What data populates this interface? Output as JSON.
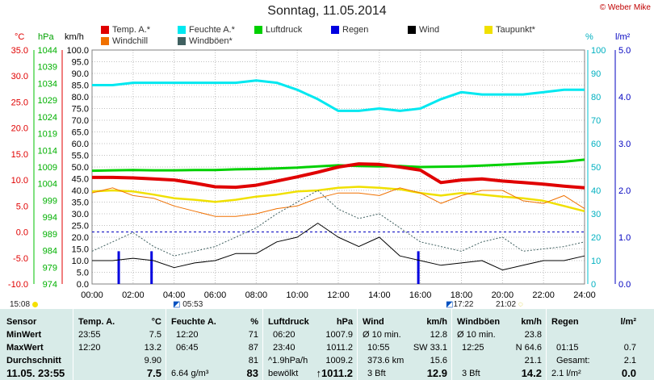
{
  "header": {
    "title": "Sonntag, 11.05.2014",
    "copyright": "© Weber Mike",
    "legend": [
      {
        "label": "Temp. A.*",
        "color": "#e00000"
      },
      {
        "label": "Feuchte A.*",
        "color": "#00e8f0"
      },
      {
        "label": "Luftdruck",
        "color": "#00d000"
      },
      {
        "label": "Regen",
        "color": "#0000e0"
      },
      {
        "label": "Wind",
        "color": "#000000"
      },
      {
        "label": "Taupunkt*",
        "color": "#f0e000"
      },
      {
        "label": "Windchill",
        "color": "#f07000"
      },
      {
        "label": "Windböen*",
        "color": "#406060"
      }
    ],
    "axis_units": {
      "temp": "°C",
      "pressure": "hPa",
      "wind": "km/h",
      "humidity": "%",
      "rain": "l/m²"
    }
  },
  "sun": {
    "sunrise_icon_time": "05:53",
    "sunset_icon_time": "21:02",
    "moon_time": "17:22",
    "left_time": "15:08"
  },
  "chart_data": {
    "type": "line",
    "x_label": "",
    "x_ticks": [
      "00:00",
      "02:00",
      "04:00",
      "06:00",
      "08:00",
      "10:00",
      "12:00",
      "14:00",
      "16:00",
      "18:00",
      "20:00",
      "22:00",
      "24:00"
    ],
    "axes": {
      "temp_c": {
        "ticks": [
          "35.0",
          "30.0",
          "25.0",
          "20.0",
          "15.0",
          "10.0",
          "5.0",
          "0.0",
          "-5.0",
          "-10.0"
        ],
        "range": [
          -10,
          35
        ]
      },
      "pressure_hpa": {
        "ticks": [
          "1044",
          "1039",
          "1034",
          "1029",
          "1024",
          "1019",
          "1014",
          "1009",
          "1004",
          "999",
          "994",
          "989",
          "984",
          "979",
          "974"
        ],
        "range": [
          974,
          1044
        ]
      },
      "wind_kmh": {
        "ticks": [
          "100.0",
          "95.0",
          "90.0",
          "85.0",
          "80.0",
          "75.0",
          "70.0",
          "65.0",
          "60.0",
          "55.0",
          "50.0",
          "45.0",
          "40.0",
          "35.0",
          "30.0",
          "25.0",
          "20.0",
          "15.0",
          "10.0",
          "5.0",
          "0.0"
        ],
        "range": [
          0,
          100
        ]
      },
      "humidity_pct": {
        "ticks": [
          "100",
          "90",
          "80",
          "70",
          "60",
          "50",
          "40",
          "30",
          "20",
          "10",
          "0"
        ],
        "range": [
          0,
          100
        ]
      },
      "rain_lm2": {
        "ticks": [
          "5.0",
          "4.0",
          "3.0",
          "2.0",
          "1.0",
          "0.0"
        ],
        "range": [
          0,
          5
        ]
      }
    },
    "series": [
      {
        "name": "Feuchte A.*",
        "axis": "humidity_pct",
        "color": "#00e8f0",
        "hours": [
          0,
          1,
          2,
          3,
          4,
          5,
          6,
          7,
          8,
          9,
          10,
          11,
          12,
          13,
          14,
          15,
          16,
          17,
          18,
          19,
          20,
          21,
          22,
          23,
          24
        ],
        "values": [
          85,
          85,
          86,
          86,
          86,
          86,
          86,
          86,
          87,
          86,
          83,
          79,
          74,
          74,
          75,
          74,
          75,
          79,
          82,
          81,
          81,
          81,
          82,
          83,
          83
        ]
      },
      {
        "name": "Luftdruck",
        "axis": "pressure_hpa",
        "color": "#00d000",
        "hours": [
          0,
          1,
          2,
          3,
          4,
          5,
          6,
          7,
          8,
          9,
          10,
          11,
          12,
          13,
          14,
          15,
          16,
          17,
          18,
          19,
          20,
          21,
          22,
          23,
          24
        ],
        "values": [
          1007.9,
          1008.0,
          1008.1,
          1008.0,
          1008.0,
          1008.1,
          1008.1,
          1008.3,
          1008.4,
          1008.6,
          1008.8,
          1009.2,
          1009.5,
          1009.3,
          1009.2,
          1009.3,
          1009.0,
          1009.1,
          1009.2,
          1009.4,
          1009.7,
          1010.0,
          1010.3,
          1010.6,
          1011.2
        ]
      },
      {
        "name": "Temp. A.*",
        "axis": "temp_c",
        "color": "#e00000",
        "hours": [
          0,
          1,
          2,
          3,
          4,
          5,
          6,
          7,
          8,
          9,
          10,
          11,
          12,
          13,
          14,
          15,
          16,
          17,
          18,
          19,
          20,
          21,
          22,
          23,
          24
        ],
        "values": [
          10.5,
          10.5,
          10.4,
          10.2,
          10.0,
          9.4,
          8.7,
          8.6,
          9.0,
          9.8,
          10.6,
          11.5,
          12.5,
          13.1,
          13.0,
          12.5,
          11.9,
          9.5,
          10.0,
          10.2,
          9.8,
          9.5,
          9.2,
          8.8,
          8.5
        ]
      },
      {
        "name": "Taupunkt*",
        "axis": "temp_c",
        "color": "#f0e000",
        "hours": [
          0,
          1,
          2,
          3,
          4,
          5,
          6,
          7,
          8,
          9,
          10,
          11,
          12,
          13,
          14,
          15,
          16,
          17,
          18,
          19,
          20,
          21,
          22,
          23,
          24
        ],
        "values": [
          7.8,
          8.0,
          7.8,
          7.2,
          6.5,
          6.2,
          5.8,
          6.2,
          6.8,
          7.2,
          7.8,
          8.0,
          8.5,
          8.7,
          8.5,
          8.2,
          7.5,
          7.0,
          7.5,
          7.2,
          6.8,
          6.5,
          6.0,
          5.0,
          4.0
        ]
      },
      {
        "name": "Windchill",
        "axis": "temp_c",
        "color": "#f07000",
        "hours": [
          0,
          1,
          2,
          3,
          4,
          5,
          6,
          7,
          8,
          9,
          10,
          11,
          12,
          13,
          14,
          15,
          16,
          17,
          18,
          19,
          20,
          21,
          22,
          23,
          24
        ],
        "values": [
          7.5,
          8.5,
          7.0,
          6.5,
          5.0,
          4.0,
          3.0,
          3.0,
          3.5,
          4.5,
          5.0,
          6.5,
          7.5,
          7.5,
          7.0,
          8.5,
          7.5,
          5.5,
          7.0,
          8.0,
          8.0,
          6.0,
          5.5,
          7.0,
          4.5
        ]
      },
      {
        "name": "Windböen*",
        "axis": "wind_kmh",
        "color": "#406060",
        "hours": [
          0,
          1,
          2,
          3,
          4,
          5,
          6,
          7,
          8,
          9,
          10,
          11,
          12,
          13,
          14,
          15,
          16,
          17,
          18,
          19,
          20,
          21,
          22,
          23,
          24
        ],
        "values": [
          14,
          18,
          22,
          16,
          12,
          14,
          16,
          20,
          24,
          30,
          35,
          40,
          32,
          28,
          30,
          24,
          18,
          16,
          14,
          18,
          20,
          14,
          15,
          16,
          18
        ]
      },
      {
        "name": "Wind",
        "axis": "wind_kmh",
        "color": "#000000",
        "hours": [
          0,
          1,
          2,
          3,
          4,
          5,
          6,
          7,
          8,
          9,
          10,
          11,
          12,
          13,
          14,
          15,
          16,
          17,
          18,
          19,
          20,
          21,
          22,
          23,
          24
        ],
        "values": [
          10,
          10,
          11,
          10,
          7,
          9,
          10,
          13,
          13,
          18,
          20,
          26,
          20,
          16,
          20,
          12,
          10,
          8,
          9,
          10,
          6,
          8,
          10,
          10,
          12
        ]
      }
    ],
    "rain_bars": [
      {
        "hour": 1.3,
        "value": 0.7
      },
      {
        "hour": 2.9,
        "value": 0.7
      },
      {
        "hour": 15.9,
        "value": 0.7
      }
    ],
    "freezing_line_c": 0.0
  },
  "table": {
    "sensor": {
      "header": "Sensor",
      "min": "MinWert",
      "max": "MaxWert",
      "avg": "Durchschnitt",
      "now": "11.05. 23:55"
    },
    "temp": {
      "header": "Temp. A.",
      "unit": "°C",
      "min_time": "23:55",
      "min": "7.5",
      "max_time": "12:20",
      "max": "13.2",
      "avg": "9.90",
      "now": "7.5"
    },
    "humidity": {
      "header": "Feuchte A.",
      "unit": "%",
      "min_time": "12:20",
      "min": "71",
      "max_time": "06:45",
      "max": "87",
      "avg": "81",
      "abs": "6.64 g/m³",
      "now": "83"
    },
    "pressure": {
      "header": "Luftdruck",
      "unit": "hPa",
      "min_time": "06:20",
      "min": "1007.9",
      "max_time": "23:40",
      "max": "1011.2",
      "trend": "^1.9hPa/h",
      "avg": "1009.2",
      "forecast": "bewölkt",
      "now": "↑1011.2"
    },
    "wind": {
      "header": "Wind",
      "unit": "km/h",
      "avg10_label": "Ø 10 min.",
      "avg10": "12.8",
      "max_time": "10:55",
      "max": "SW 33.1",
      "dist": "373.6 km",
      "avg": "15.6",
      "bft": "3 Bft",
      "now": "12.9"
    },
    "gusts": {
      "header": "Windböen",
      "unit": "km/h",
      "avg10_label": "Ø 10 min.",
      "avg10": "23.8",
      "max_time": "12:25",
      "max": "N 64.6",
      "avg": "21.1",
      "bft": "3 Bft",
      "now": "14.2"
    },
    "rain": {
      "header": "Regen",
      "unit": "l/m²",
      "time": "01:15",
      "value": "0.7",
      "total_label": "Gesamt:",
      "total": "2.1",
      "day": "2.1 l/m²",
      "now": "0.0"
    }
  }
}
